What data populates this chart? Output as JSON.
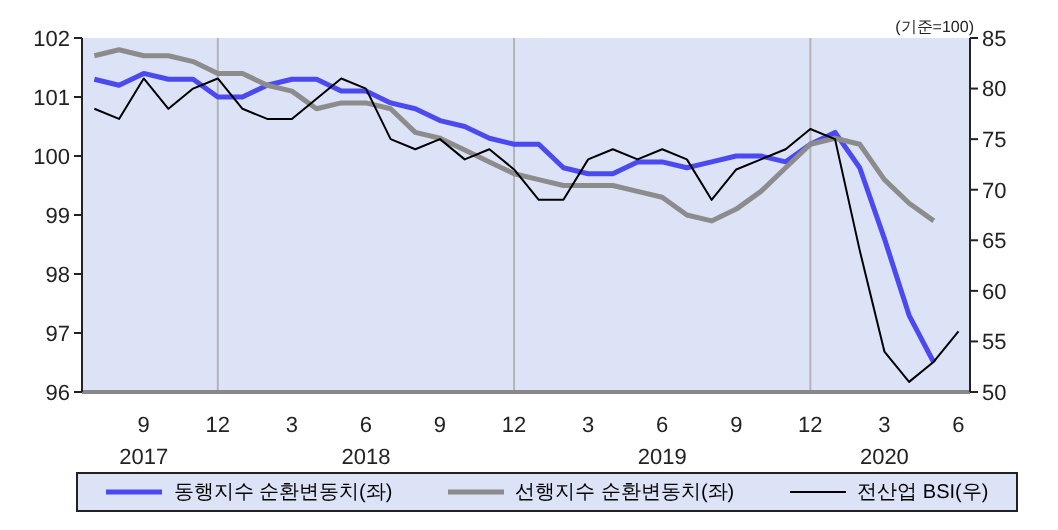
{
  "chart_data": {
    "type": "line",
    "annotations": [
      "(기준=100)"
    ],
    "x": [
      "2017-07",
      "2017-08",
      "2017-09",
      "2017-10",
      "2017-11",
      "2017-12",
      "2018-01",
      "2018-02",
      "2018-03",
      "2018-04",
      "2018-05",
      "2018-06",
      "2018-07",
      "2018-08",
      "2018-09",
      "2018-10",
      "2018-11",
      "2018-12",
      "2019-01",
      "2019-02",
      "2019-03",
      "2019-04",
      "2019-05",
      "2019-06",
      "2019-07",
      "2019-08",
      "2019-09",
      "2019-10",
      "2019-11",
      "2019-12",
      "2020-01",
      "2020-02",
      "2020-03",
      "2020-04",
      "2020-05",
      "2020-06"
    ],
    "series": [
      {
        "name": "동행지수 순환변동치(좌)",
        "color": "#4a4af0",
        "values": [
          101.3,
          101.2,
          101.4,
          101.3,
          101.3,
          101.0,
          101.0,
          101.2,
          101.3,
          101.3,
          101.1,
          101.1,
          100.9,
          100.8,
          100.6,
          100.5,
          100.3,
          100.2,
          100.2,
          99.8,
          99.7,
          99.7,
          99.9,
          99.9,
          99.8,
          99.9,
          100.0,
          100.0,
          99.9,
          100.2,
          100.4,
          99.8,
          98.6,
          97.3,
          96.5,
          null
        ]
      },
      {
        "name": "선행지수 순환변동치(좌)",
        "color": "#8c8c8c",
        "values": [
          101.7,
          101.8,
          101.7,
          101.7,
          101.6,
          101.4,
          101.4,
          101.2,
          101.1,
          100.8,
          100.9,
          100.9,
          100.8,
          100.4,
          100.3,
          100.1,
          99.9,
          99.7,
          99.6,
          99.5,
          99.5,
          99.5,
          99.4,
          99.3,
          99.0,
          98.9,
          99.1,
          99.4,
          99.8,
          100.2,
          100.3,
          100.2,
          99.6,
          99.2,
          98.9,
          null
        ]
      },
      {
        "name": "전산업 BSI(우)",
        "color": "#000000",
        "axis": "y2",
        "values": [
          78,
          77,
          81,
          78,
          80,
          81,
          78,
          77,
          77,
          79,
          81,
          80,
          75,
          74,
          75,
          73,
          74,
          72,
          69,
          69,
          73,
          74,
          73,
          74,
          73,
          69,
          72,
          73,
          74,
          76,
          75,
          64,
          54,
          51,
          53,
          56
        ]
      }
    ],
    "xlim": [
      "2017-06-16",
      "2020-06-15"
    ],
    "xticks": [
      {
        "value": "2017-09",
        "label": "9\n2017"
      },
      {
        "value": "2017-12",
        "label": "12"
      },
      {
        "value": "2018-03",
        "label": "3"
      },
      {
        "value": "2018-06",
        "label": "6\n2018"
      },
      {
        "value": "2018-09",
        "label": "9"
      },
      {
        "value": "2018-12",
        "label": "12"
      },
      {
        "value": "2019-03",
        "label": "3"
      },
      {
        "value": "2019-06",
        "label": "6\n2019"
      },
      {
        "value": "2019-09",
        "label": "9"
      },
      {
        "value": "2019-12",
        "label": "12"
      },
      {
        "value": "2020-03",
        "label": "3\n2020"
      },
      {
        "value": "2020-06",
        "label": "6"
      }
    ],
    "ylim": [
      96,
      102
    ],
    "yticks": [
      96,
      97,
      98,
      99,
      100,
      101,
      102
    ],
    "y2lim": [
      50,
      85
    ],
    "y2ticks": [
      50,
      55,
      60,
      65,
      70,
      75,
      80,
      85
    ],
    "ref_lines": [
      {
        "axis": "x",
        "value": "2017-12",
        "color": "#b4b4b4"
      },
      {
        "axis": "x",
        "value": "2018-12",
        "color": "#b4b4b4"
      },
      {
        "axis": "x",
        "value": "2019-12",
        "color": "#b4b4b4"
      }
    ],
    "grid": false,
    "legend": "bottom",
    "marker": "none",
    "line_style": "solid"
  }
}
